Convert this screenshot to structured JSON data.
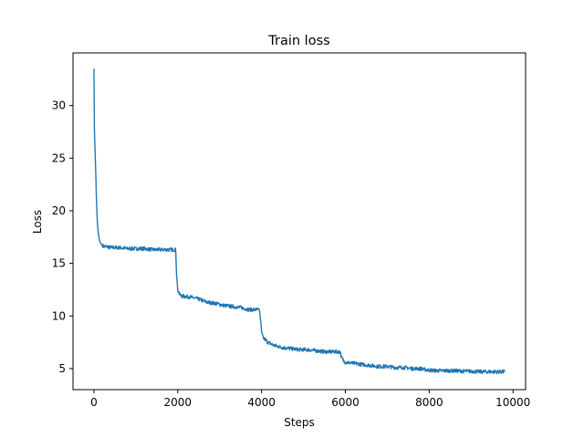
{
  "chart_data": {
    "type": "line",
    "title": "Train loss",
    "xlabel": "Steps",
    "ylabel": "Loss",
    "xlim": [
      -500,
      10300
    ],
    "ylim": [
      3.0,
      35.0
    ],
    "xticks": [
      0,
      2000,
      4000,
      6000,
      8000,
      10000
    ],
    "xtick_labels": [
      "0",
      "2000",
      "4000",
      "6000",
      "8000",
      "10000"
    ],
    "yticks": [
      5,
      10,
      15,
      20,
      25,
      30
    ],
    "ytick_labels": [
      "5",
      "10",
      "15",
      "20",
      "25",
      "30"
    ],
    "grid": false,
    "legend": "none",
    "line_color": "#1f77b4",
    "series": [
      {
        "x": [
          0,
          10,
          20,
          40,
          60,
          80,
          100,
          130,
          160,
          200,
          250,
          300,
          400,
          600,
          800,
          1000,
          1200,
          1400,
          1600,
          1800,
          1950,
          1970,
          2000,
          2050,
          2100,
          2300,
          2500,
          2700,
          2900,
          3100,
          3300,
          3500,
          3700,
          3900,
          3950,
          3980,
          4000,
          4050,
          4150,
          4300,
          4500,
          4700,
          4900,
          5100,
          5300,
          5500,
          5700,
          5880,
          5900,
          5950,
          6000,
          6200,
          6400,
          6600,
          6800,
          7000,
          7200,
          7400,
          7600,
          7800,
          7900,
          8000,
          8200,
          8400,
          8600,
          8800,
          9000,
          9200,
          9400,
          9600,
          9800
        ],
        "y": [
          33.5,
          28.0,
          26.5,
          24.0,
          21.0,
          19.0,
          18.0,
          17.2,
          16.9,
          16.7,
          16.6,
          16.6,
          16.5,
          16.5,
          16.4,
          16.4,
          16.4,
          16.3,
          16.3,
          16.3,
          16.3,
          14.0,
          12.5,
          12.0,
          11.9,
          11.8,
          11.6,
          11.3,
          11.2,
          11.0,
          10.9,
          10.8,
          10.6,
          10.6,
          10.5,
          9.5,
          8.5,
          7.9,
          7.5,
          7.2,
          7.0,
          6.9,
          6.8,
          6.8,
          6.7,
          6.6,
          6.6,
          6.6,
          6.1,
          5.8,
          5.6,
          5.5,
          5.4,
          5.3,
          5.2,
          5.2,
          5.1,
          5.1,
          5.0,
          5.0,
          4.9,
          4.85,
          4.8,
          4.8,
          4.8,
          4.75,
          4.75,
          4.7,
          4.7,
          4.7,
          4.7
        ]
      }
    ]
  }
}
